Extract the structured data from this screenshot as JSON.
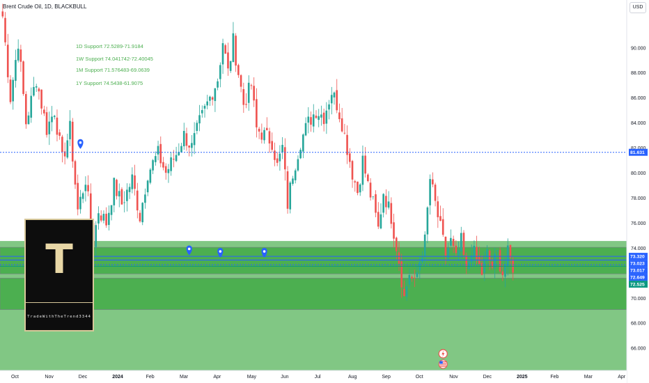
{
  "header": {
    "title": "Brent Crude Oil, 1D, BLACKBULL",
    "currency": "USD"
  },
  "supports": [
    {
      "label": "1D Support 72.5289-71.9184"
    },
    {
      "label": "1W Support 74.041742-72.40045"
    },
    {
      "label": "1M Support 71.576483-69.0639"
    },
    {
      "label": "1Y Support 74.5438-61.9075"
    }
  ],
  "logo": {
    "letter": "T",
    "brand": "TradeWithTheTrend3344"
  },
  "colors": {
    "up": "#26a69a",
    "down": "#ef5350",
    "zone_band": "#4caf50",
    "zone_low": "#81c784",
    "level_line": "#2962ff",
    "support_text": "#4caf50"
  },
  "chart_data": {
    "type": "candlestick",
    "title": "Brent Crude Oil, 1D, BLACKBULL",
    "ylim": [
      64.2,
      93.8
    ],
    "y_ticks": [
      "66.000",
      "68.000",
      "70.000",
      "72.000",
      "74.000",
      "76.000",
      "78.000",
      "80.000",
      "82.000",
      "84.000",
      "86.000",
      "88.000",
      "90.000"
    ],
    "x_ticks": [
      "Oct",
      "Nov",
      "Dec",
      "2024",
      "Feb",
      "Mar",
      "Apr",
      "May",
      "Jun",
      "Jul",
      "Aug",
      "Sep",
      "Oct",
      "Nov",
      "Dec",
      "2025",
      "Feb",
      "Mar",
      "Apr"
    ],
    "series_path": [
      [
        0,
        92.5
      ],
      [
        3,
        86.0
      ],
      [
        6,
        90.5
      ],
      [
        9,
        84.0
      ],
      [
        13,
        87.5
      ],
      [
        17,
        83.5
      ],
      [
        20,
        85.0
      ],
      [
        23,
        81.0
      ],
      [
        26,
        83.5
      ],
      [
        29,
        77.0
      ],
      [
        32,
        79.5
      ],
      [
        35,
        74.5
      ],
      [
        37,
        77.0
      ],
      [
        40,
        76.0
      ],
      [
        43,
        79.0
      ],
      [
        46,
        77.5
      ],
      [
        50,
        79.5
      ],
      [
        53,
        76.5
      ],
      [
        56,
        80.0
      ],
      [
        60,
        81.5
      ],
      [
        63,
        80.0
      ],
      [
        67,
        81.5
      ],
      [
        70,
        83.0
      ],
      [
        73,
        82.0
      ],
      [
        76,
        84.0
      ],
      [
        80,
        86.0
      ],
      [
        83,
        87.5
      ],
      [
        85,
        90.5
      ],
      [
        87,
        88.0
      ],
      [
        89,
        90.5
      ],
      [
        91,
        88.0
      ],
      [
        93,
        85.5
      ],
      [
        96,
        87.0
      ],
      [
        98,
        83.5
      ],
      [
        101,
        83.0
      ],
      [
        104,
        82.5
      ],
      [
        106,
        80.5
      ],
      [
        108,
        82.0
      ],
      [
        110,
        77.5
      ],
      [
        112,
        80.0
      ],
      [
        115,
        82.5
      ],
      [
        118,
        84.0
      ],
      [
        121,
        85.0
      ],
      [
        124,
        84.5
      ],
      [
        127,
        86.5
      ],
      [
        129,
        85.5
      ],
      [
        131,
        84.0
      ],
      [
        133,
        82.0
      ],
      [
        135,
        80.0
      ],
      [
        137,
        78.5
      ],
      [
        139,
        81.0
      ],
      [
        141,
        79.0
      ],
      [
        143,
        77.5
      ],
      [
        145,
        75.5
      ],
      [
        147,
        78.5
      ],
      [
        150,
        76.5
      ],
      [
        153,
        73.0
      ],
      [
        155,
        70.0
      ],
      [
        157,
        72.0
      ],
      [
        159,
        71.0
      ],
      [
        161,
        73.0
      ],
      [
        163,
        74.5
      ],
      [
        165,
        79.5
      ],
      [
        167,
        77.5
      ],
      [
        169,
        75.5
      ],
      [
        171,
        73.5
      ],
      [
        173,
        74.5
      ],
      [
        175,
        73.0
      ],
      [
        177,
        74.5
      ],
      [
        179,
        72.0
      ],
      [
        181,
        74.0
      ],
      [
        183,
        73.0
      ],
      [
        185,
        72.0
      ],
      [
        187,
        73.5
      ],
      [
        189,
        72.5
      ],
      [
        191,
        73.5
      ],
      [
        193,
        72.0
      ],
      [
        195,
        73.5
      ],
      [
        197,
        72.5
      ]
    ],
    "total_bars": 198,
    "levels": [
      {
        "value": 81.631,
        "label": "81.631",
        "style": "dotted",
        "color": "#2962ff"
      },
      {
        "value": 73.32,
        "label": "73.320",
        "style": "solid",
        "color": "#2962ff"
      },
      {
        "value": 73.023,
        "label": "73.023",
        "style": "solid",
        "color": "#2962ff"
      },
      {
        "value": 73.017,
        "label": "73.017",
        "style": "solid",
        "color": "#2962ff"
      },
      {
        "value": 72.649,
        "label": "72.649",
        "style": "dotted",
        "color": "#2962ff"
      },
      {
        "value": 72.525,
        "label": "72.525",
        "style": "solid",
        "color": "#089981"
      }
    ],
    "zones": [
      {
        "name": "1Y Support",
        "top": 74.5438,
        "bottom": 61.9075,
        "color": "#81c784"
      },
      {
        "name": "1W Support",
        "top": 74.041742,
        "bottom": 72.40045,
        "color": "#4caf50"
      },
      {
        "name": "1D Support",
        "top": 72.5289,
        "bottom": 71.9184,
        "color": "#4caf50"
      },
      {
        "name": "1M Support",
        "top": 71.576483,
        "bottom": 69.0639,
        "color": "#4caf50"
      }
    ],
    "markers": [
      {
        "bar": 30,
        "value": 82.3,
        "kind": "pin"
      },
      {
        "bar": 72,
        "value": 73.8,
        "kind": "pin"
      },
      {
        "bar": 84,
        "value": 73.6,
        "kind": "pin"
      },
      {
        "bar": 101,
        "value": 73.6,
        "kind": "pin"
      }
    ],
    "event_icons": [
      {
        "bar": 170,
        "kind": "lightning"
      },
      {
        "bar": 170,
        "kind": "us-flag"
      }
    ]
  }
}
